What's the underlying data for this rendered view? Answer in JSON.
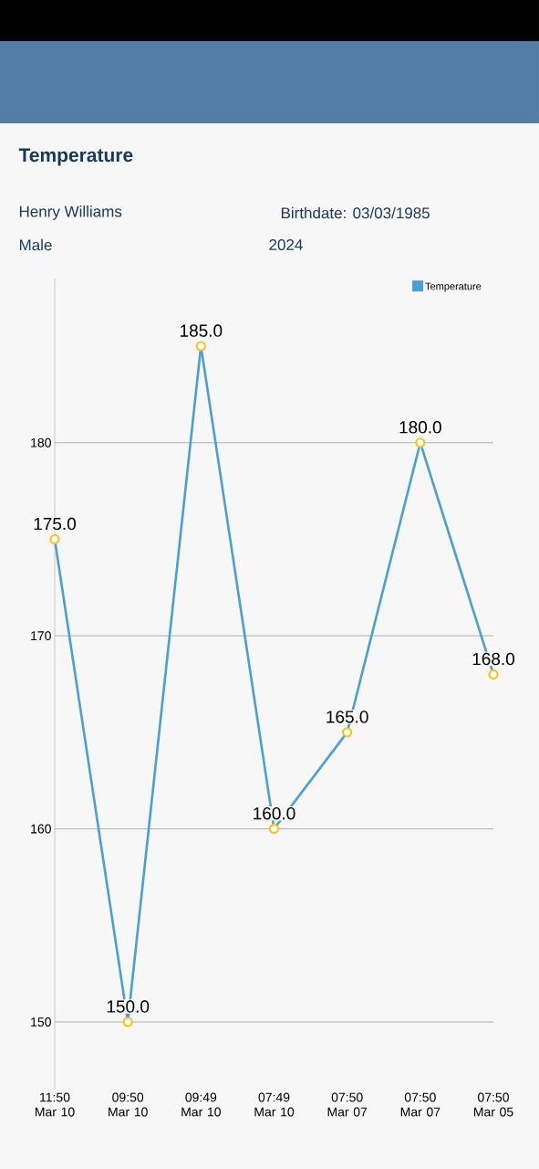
{
  "chart_data": {
    "type": "line",
    "title": "Temperature",
    "annotations": [
      "Henry Williams",
      "Birthdate: 03/03/1985",
      "Male",
      "2024"
    ],
    "categories": [
      "11:50 Mar 10",
      "09:50 Mar 10",
      "09:49 Mar 10",
      "07:49 Mar 10",
      "07:50 Mar 07",
      "07:50 Mar 07",
      "07:50 Mar 05"
    ],
    "series": [
      {
        "name": "Temperature",
        "color": "#4a9fd4",
        "values": [
          175,
          150,
          185,
          160,
          165,
          180,
          168
        ]
      }
    ],
    "value_labels": [
      "175.0",
      "150.0",
      "185.0",
      "160.0",
      "165.0",
      "180.0",
      "168.0"
    ],
    "ylim": [
      146.5,
      188.5
    ],
    "yticks": [
      150,
      160,
      170,
      180
    ],
    "grid": "y",
    "legend": "top right",
    "marker": "circle",
    "line_style": "solid"
  }
}
